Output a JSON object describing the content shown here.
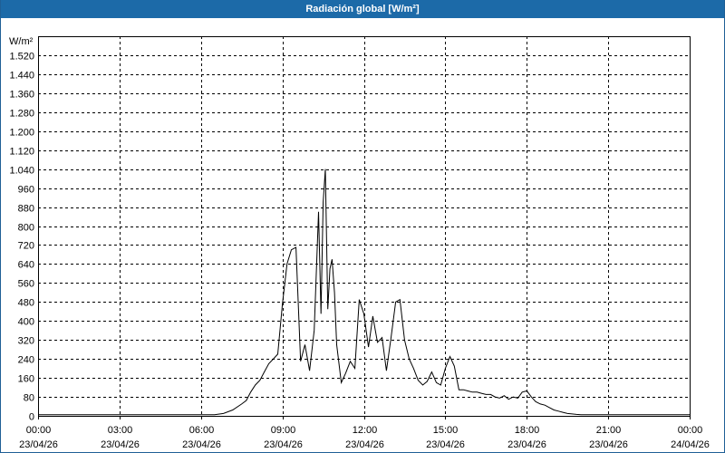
{
  "window": {
    "title": "Radiación global [W/m²]"
  },
  "chart_data": {
    "type": "line",
    "title": "Radiación global [W/m²]",
    "ylabel": "W/m²",
    "xlabel": "",
    "ylim": [
      0,
      1600
    ],
    "yticks": [
      0,
      80,
      160,
      240,
      320,
      400,
      480,
      560,
      640,
      720,
      800,
      880,
      960,
      1040,
      1120,
      1200,
      1280,
      1360,
      1440,
      1520
    ],
    "ytick_labels": [
      "0",
      "80",
      "160",
      "240",
      "320",
      "400",
      "480",
      "560",
      "640",
      "720",
      "800",
      "880",
      "960",
      "1.040",
      "1.120",
      "1.200",
      "1.280",
      "1.360",
      "1.440",
      "1.520"
    ],
    "xlim": [
      0,
      24
    ],
    "xticks": [
      {
        "value": 0,
        "time": "00:00",
        "date": "23/04/26"
      },
      {
        "value": 3,
        "time": "03:00",
        "date": "23/04/26"
      },
      {
        "value": 6,
        "time": "06:00",
        "date": "23/04/26"
      },
      {
        "value": 9,
        "time": "09:00",
        "date": "23/04/26"
      },
      {
        "value": 12,
        "time": "12:00",
        "date": "23/04/26"
      },
      {
        "value": 15,
        "time": "15:00",
        "date": "23/04/26"
      },
      {
        "value": 18,
        "time": "18:00",
        "date": "23/04/26"
      },
      {
        "value": 21,
        "time": "21:00",
        "date": "23/04/26"
      },
      {
        "value": 24,
        "time": "00:00",
        "date": "24/04/26"
      }
    ],
    "grid": true,
    "line_color": "#000000",
    "series": [
      {
        "name": "",
        "x": [
          0,
          6.5,
          6.83,
          7.17,
          7.5,
          7.67,
          7.83,
          8.0,
          8.17,
          8.33,
          8.5,
          8.67,
          8.83,
          9.0,
          9.17,
          9.33,
          9.5,
          9.67,
          9.83,
          10.0,
          10.17,
          10.33,
          10.42,
          10.5,
          10.58,
          10.67,
          10.75,
          10.83,
          10.92,
          11.0,
          11.17,
          11.33,
          11.5,
          11.67,
          11.83,
          12.0,
          12.17,
          12.33,
          12.5,
          12.67,
          12.83,
          13.0,
          13.17,
          13.33,
          13.5,
          13.67,
          13.83,
          14.0,
          14.17,
          14.33,
          14.5,
          14.67,
          14.83,
          15.0,
          15.17,
          15.33,
          15.5,
          15.67,
          15.83,
          16.0,
          16.17,
          16.33,
          16.5,
          16.67,
          16.83,
          17.0,
          17.17,
          17.33,
          17.5,
          17.67,
          17.83,
          18.0,
          18.17,
          18.33,
          18.5,
          18.67,
          18.83,
          19.0,
          19.17,
          19.33,
          19.5,
          19.67,
          19.83,
          20.0,
          20.5,
          24.0
        ],
        "values": [
          5,
          5,
          10,
          25,
          50,
          65,
          100,
          130,
          150,
          185,
          220,
          240,
          260,
          470,
          640,
          700,
          710,
          230,
          300,
          190,
          360,
          860,
          430,
          900,
          1040,
          450,
          620,
          660,
          520,
          300,
          140,
          180,
          230,
          200,
          490,
          430,
          290,
          420,
          310,
          330,
          190,
          330,
          480,
          490,
          320,
          240,
          200,
          150,
          130,
          145,
          185,
          140,
          130,
          200,
          250,
          210,
          110,
          110,
          105,
          100,
          100,
          95,
          90,
          90,
          80,
          75,
          85,
          70,
          80,
          75,
          100,
          105,
          80,
          60,
          50,
          45,
          35,
          25,
          20,
          15,
          10,
          8,
          6,
          5,
          5,
          5
        ]
      }
    ]
  }
}
